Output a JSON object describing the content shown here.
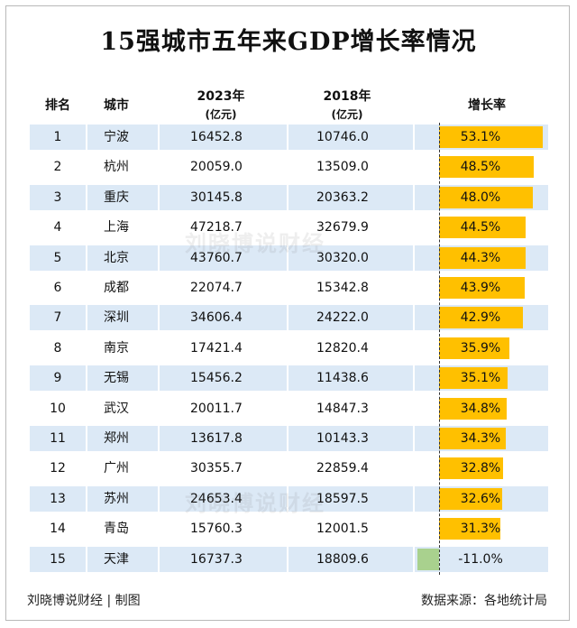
{
  "title": "15强城市五年来GDP增长率情况",
  "headers": {
    "rank": "排名",
    "city": "城市",
    "y2023": "2023年",
    "y2023_unit": "(亿元)",
    "y2018": "2018年",
    "y2018_unit": "(亿元)",
    "growth": "增长率"
  },
  "watermark": "刘晓博说财经",
  "footer": {
    "left": "刘晓博说财经 | 制图",
    "right": "数据来源：各地统计局"
  },
  "colors": {
    "positive_bar": "#ffc000",
    "negative_bar": "#a9d18e",
    "row_band": "#dce9f6"
  },
  "chart_data": {
    "type": "table",
    "columns": [
      "排名",
      "城市",
      "2023年(亿元)",
      "2018年(亿元)",
      "增长率"
    ],
    "rows": [
      {
        "rank": "1",
        "city": "宁波",
        "gdp2023": "16452.8",
        "gdp2018": "10746.0",
        "growth": 53.1,
        "growth_label": "53.1%"
      },
      {
        "rank": "2",
        "city": "杭州",
        "gdp2023": "20059.0",
        "gdp2018": "13509.0",
        "growth": 48.5,
        "growth_label": "48.5%"
      },
      {
        "rank": "3",
        "city": "重庆",
        "gdp2023": "30145.8",
        "gdp2018": "20363.2",
        "growth": 48.0,
        "growth_label": "48.0%"
      },
      {
        "rank": "4",
        "city": "上海",
        "gdp2023": "47218.7",
        "gdp2018": "32679.9",
        "growth": 44.5,
        "growth_label": "44.5%"
      },
      {
        "rank": "5",
        "city": "北京",
        "gdp2023": "43760.7",
        "gdp2018": "30320.0",
        "growth": 44.3,
        "growth_label": "44.3%"
      },
      {
        "rank": "6",
        "city": "成都",
        "gdp2023": "22074.7",
        "gdp2018": "15342.8",
        "growth": 43.9,
        "growth_label": "43.9%"
      },
      {
        "rank": "7",
        "city": "深圳",
        "gdp2023": "34606.4",
        "gdp2018": "24222.0",
        "growth": 42.9,
        "growth_label": "42.9%"
      },
      {
        "rank": "8",
        "city": "南京",
        "gdp2023": "17421.4",
        "gdp2018": "12820.4",
        "growth": 35.9,
        "growth_label": "35.9%"
      },
      {
        "rank": "9",
        "city": "无锡",
        "gdp2023": "15456.2",
        "gdp2018": "11438.6",
        "growth": 35.1,
        "growth_label": "35.1%"
      },
      {
        "rank": "10",
        "city": "武汉",
        "gdp2023": "20011.7",
        "gdp2018": "14847.3",
        "growth": 34.8,
        "growth_label": "34.8%"
      },
      {
        "rank": "11",
        "city": "郑州",
        "gdp2023": "13617.8",
        "gdp2018": "10143.3",
        "growth": 34.3,
        "growth_label": "34.3%"
      },
      {
        "rank": "12",
        "city": "广州",
        "gdp2023": "30355.7",
        "gdp2018": "22859.4",
        "growth": 32.8,
        "growth_label": "32.8%"
      },
      {
        "rank": "13",
        "city": "苏州",
        "gdp2023": "24653.4",
        "gdp2018": "18597.5",
        "growth": 32.6,
        "growth_label": "32.6%"
      },
      {
        "rank": "14",
        "city": "青岛",
        "gdp2023": "15760.3",
        "gdp2018": "12001.5",
        "growth": 31.3,
        "growth_label": "31.3%"
      },
      {
        "rank": "15",
        "city": "天津",
        "gdp2023": "16737.3",
        "gdp2018": "18809.6",
        "growth": -11.0,
        "growth_label": "-11.0%"
      }
    ]
  }
}
